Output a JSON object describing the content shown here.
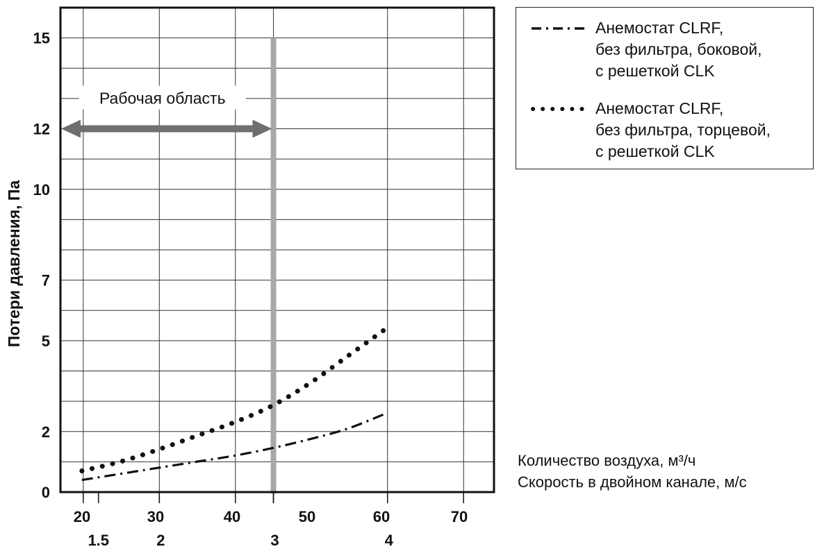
{
  "chart_data": {
    "type": "line",
    "ylabel": "Потери давления, Па",
    "xlabel": "Количество воздуха, м³/ч",
    "x2label": "Скорость в двойном канале, м/с",
    "xlim": [
      17,
      74
    ],
    "ylim": [
      0,
      16
    ],
    "y_ticks": [
      0,
      2,
      5,
      7,
      10,
      12,
      15
    ],
    "y_gridlines": [
      0,
      1,
      2,
      3,
      4,
      5,
      6,
      7,
      8,
      9,
      10,
      11,
      12,
      13,
      14,
      15,
      16
    ],
    "x_ticks": [
      20,
      30,
      40,
      50,
      60,
      70
    ],
    "x_gridlines": [
      20,
      30,
      40,
      45,
      60,
      70
    ],
    "x2_ticks": [
      {
        "at": 22,
        "label": "1.5"
      },
      {
        "at": 30,
        "label": "2"
      },
      {
        "at": 45,
        "label": "3"
      },
      {
        "at": 60,
        "label": "4"
      }
    ],
    "grid": true,
    "legend_position": "right-top",
    "series": [
      {
        "name": "Анемостат CLRF,\nбез фильтра, боковой,\nс решеткой CLK",
        "style": "dash-dot",
        "color": "#111111",
        "x": [
          20,
          25,
          30,
          35,
          40,
          45,
          50,
          55,
          60
        ],
        "y": [
          0.4,
          0.6,
          0.8,
          1.0,
          1.2,
          1.45,
          1.75,
          2.1,
          2.6
        ]
      },
      {
        "name": "Анемостат CLRF,\nбез фильтра, торцевой,\nс решеткой CLK",
        "style": "dotted",
        "color": "#111111",
        "x": [
          20,
          25,
          30,
          35,
          40,
          45,
          50,
          55,
          60
        ],
        "y": [
          0.7,
          1.0,
          1.4,
          1.85,
          2.3,
          2.85,
          3.6,
          4.5,
          5.4
        ]
      }
    ],
    "annotations": [
      {
        "type": "vertical-band",
        "x": 45,
        "color": "#a8a8a8"
      },
      {
        "type": "double-arrow",
        "text": "Рабочая область",
        "x_from": 17,
        "x_to": 45,
        "y": 12,
        "color": "#6f6f6f"
      }
    ]
  }
}
